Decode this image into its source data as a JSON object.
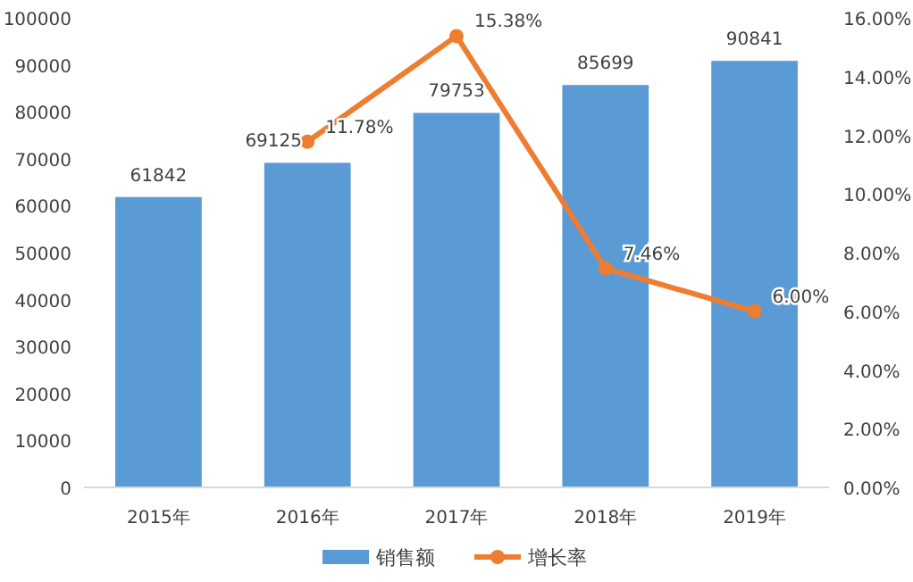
{
  "chart_data": {
    "type": "bar",
    "categories": [
      "2015年",
      "2016年",
      "2017年",
      "2018年",
      "2019年"
    ],
    "series": [
      {
        "name": "销售额",
        "color": "#5b9bd5",
        "values": [
          61842,
          69125,
          79753,
          85699,
          90841
        ],
        "value_labels": [
          "61842",
          "69125",
          "79753",
          "85699",
          "90841"
        ]
      },
      {
        "name": "增长率",
        "type": "line",
        "axis": "y2",
        "color": "#ed7d31",
        "marker": "circle",
        "values": [
          null,
          11.78,
          15.38,
          7.46,
          6.0
        ],
        "value_labels": [
          null,
          "11.78%",
          "15.38%",
          "7.46%",
          "6.00%"
        ]
      }
    ],
    "ylim": [
      0,
      100000
    ],
    "yticks": [
      0,
      10000,
      20000,
      30000,
      40000,
      50000,
      60000,
      70000,
      80000,
      90000,
      100000
    ],
    "y2lim": [
      0,
      16
    ],
    "y2ticks": [
      {
        "value": 0,
        "label": "0.00%"
      },
      {
        "value": 2,
        "label": "2.00%"
      },
      {
        "value": 4,
        "label": "4.00%"
      },
      {
        "value": 6,
        "label": "6.00%"
      },
      {
        "value": 8,
        "label": "8.00%"
      },
      {
        "value": 10,
        "label": "10.00%"
      },
      {
        "value": 12,
        "label": "12.00%"
      },
      {
        "value": 14,
        "label": "14.00%"
      },
      {
        "value": 16,
        "label": "16.00%"
      }
    ],
    "grid": false,
    "legend": "bottom"
  }
}
